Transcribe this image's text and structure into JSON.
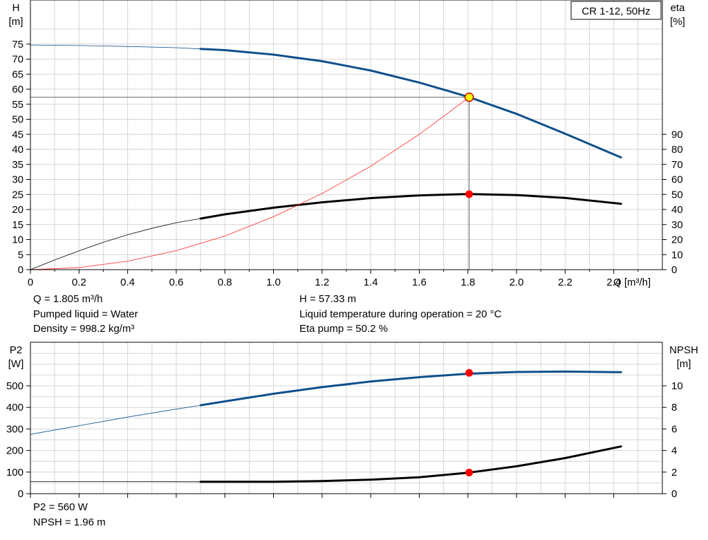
{
  "top": {
    "badge": "CR 1-12, 50Hz",
    "left_axis": {
      "name": "H",
      "unit": "[m]"
    },
    "right_axis": {
      "name": "eta",
      "unit": "[%]"
    },
    "x_axis_label": "Q [m³/h]",
    "info_left": [
      "Q = 1.805 m³/h",
      "Pumped liquid = Water",
      "Density = 998.2 kg/m³"
    ],
    "info_right": [
      "H = 57.33 m",
      "Liquid temperature during operation = 20 °C",
      "Eta pump = 50.2 %"
    ]
  },
  "bottom": {
    "left_axis": {
      "name": "P2",
      "unit": "[W]"
    },
    "right_axis": {
      "name": "NPSH",
      "unit": "[m]"
    },
    "info_left": [
      "P2 = 560 W",
      "NPSH = 1.96 m"
    ]
  },
  "colors": {
    "head": "#0d4f8b",
    "eta": "#000000",
    "system": "#ff3b3b",
    "power": "#0d4f8b",
    "npsh": "#000000",
    "marker": "#ff0000",
    "duty_fill": "#ffff00",
    "grid": "#d4d4d4"
  },
  "chart_data": [
    {
      "type": "line",
      "title": "CR 1-12, 50Hz",
      "xlabel": "Q [m³/h]",
      "ylabel": "H [m]",
      "y2label": "eta [%]",
      "xlim": [
        0,
        2.6
      ],
      "ylim": [
        0,
        80
      ],
      "y2lim": [
        0,
        100
      ],
      "x_ticks": [
        0,
        0.2,
        0.4,
        0.6,
        0.8,
        1.0,
        1.2,
        1.4,
        1.6,
        1.8,
        2.0,
        2.2,
        2.4
      ],
      "x_tick_labels": [
        "0",
        "0.2",
        "0.4",
        "0.6",
        "0.8",
        "1.0",
        "1.2",
        "1.4",
        "1.6",
        "1.8",
        "2.0",
        "2.2",
        "2.4"
      ],
      "y_ticks": [
        0,
        5,
        10,
        15,
        20,
        25,
        30,
        35,
        40,
        45,
        50,
        55,
        60,
        65,
        70,
        75
      ],
      "y2_ticks": [
        0,
        10,
        20,
        30,
        40,
        50,
        60,
        70,
        80,
        90
      ],
      "grid": true,
      "legend": "none",
      "series": [
        {
          "key": "head",
          "axis": "left",
          "thin_until": 0.7,
          "x": [
            0,
            0.2,
            0.4,
            0.6,
            0.7,
            0.8,
            1.0,
            1.2,
            1.4,
            1.6,
            1.8,
            2.0,
            2.2,
            2.43
          ],
          "y": [
            74.7,
            74.5,
            74.2,
            73.8,
            73.4,
            73.0,
            71.5,
            69.3,
            66.2,
            62.2,
            57.5,
            51.8,
            45.2,
            37.3
          ]
        },
        {
          "key": "eta",
          "axis": "right",
          "thin_until": 0.7,
          "x": [
            0,
            0.1,
            0.2,
            0.3,
            0.4,
            0.5,
            0.6,
            0.7,
            0.8,
            1.0,
            1.2,
            1.4,
            1.6,
            1.8,
            2.0,
            2.2,
            2.43
          ],
          "y": [
            0,
            6.5,
            12.5,
            18.2,
            23.2,
            27.5,
            31.2,
            34.0,
            36.8,
            41.2,
            44.8,
            47.6,
            49.4,
            50.3,
            49.6,
            47.7,
            43.8
          ]
        },
        {
          "key": "system",
          "axis": "left",
          "thin_until": 2.43,
          "x": [
            0,
            0.2,
            0.4,
            0.6,
            0.8,
            1.0,
            1.2,
            1.4,
            1.6,
            1.805
          ],
          "y": [
            0,
            0.7,
            2.8,
            6.3,
            11.2,
            17.6,
            25.3,
            34.4,
            45.0,
            57.33
          ]
        }
      ],
      "markers": [
        {
          "key": "duty",
          "axis": "left",
          "x": 1.805,
          "y": 57.33
        },
        {
          "key": "eta",
          "axis": "right",
          "x": 1.805,
          "y": 50.2
        }
      ],
      "guide": {
        "x": 1.805,
        "y": 57.33
      }
    },
    {
      "type": "line",
      "ylabel": "P2 [W]",
      "y2label": "NPSH [m]",
      "xlim": [
        0,
        2.6
      ],
      "ylim": [
        0,
        600
      ],
      "y2lim": [
        0,
        12
      ],
      "y_ticks": [
        0,
        100,
        200,
        300,
        400,
        500
      ],
      "y2_ticks": [
        0,
        2,
        4,
        6,
        8,
        10
      ],
      "grid": true,
      "legend": "none",
      "series": [
        {
          "key": "power",
          "axis": "left",
          "thin_until": 0.7,
          "x": [
            0,
            0.2,
            0.4,
            0.6,
            0.7,
            0.8,
            1.0,
            1.2,
            1.4,
            1.6,
            1.8,
            2.0,
            2.2,
            2.43
          ],
          "y": [
            275,
            315,
            355,
            392,
            410,
            428,
            463,
            494,
            520,
            540,
            556,
            564,
            566,
            563
          ]
        },
        {
          "key": "npsh",
          "axis": "right",
          "thin_until": 0.7,
          "x": [
            0,
            0.2,
            0.4,
            0.6,
            0.7,
            0.8,
            1.0,
            1.2,
            1.4,
            1.6,
            1.8,
            2.0,
            2.2,
            2.43
          ],
          "y": [
            1.12,
            1.12,
            1.12,
            1.11,
            1.1,
            1.1,
            1.11,
            1.17,
            1.3,
            1.52,
            1.94,
            2.54,
            3.3,
            4.38
          ]
        }
      ],
      "markers": [
        {
          "key": "power",
          "axis": "left",
          "x": 1.805,
          "y": 560
        },
        {
          "key": "npsh",
          "axis": "right",
          "x": 1.805,
          "y": 1.96
        }
      ]
    }
  ]
}
